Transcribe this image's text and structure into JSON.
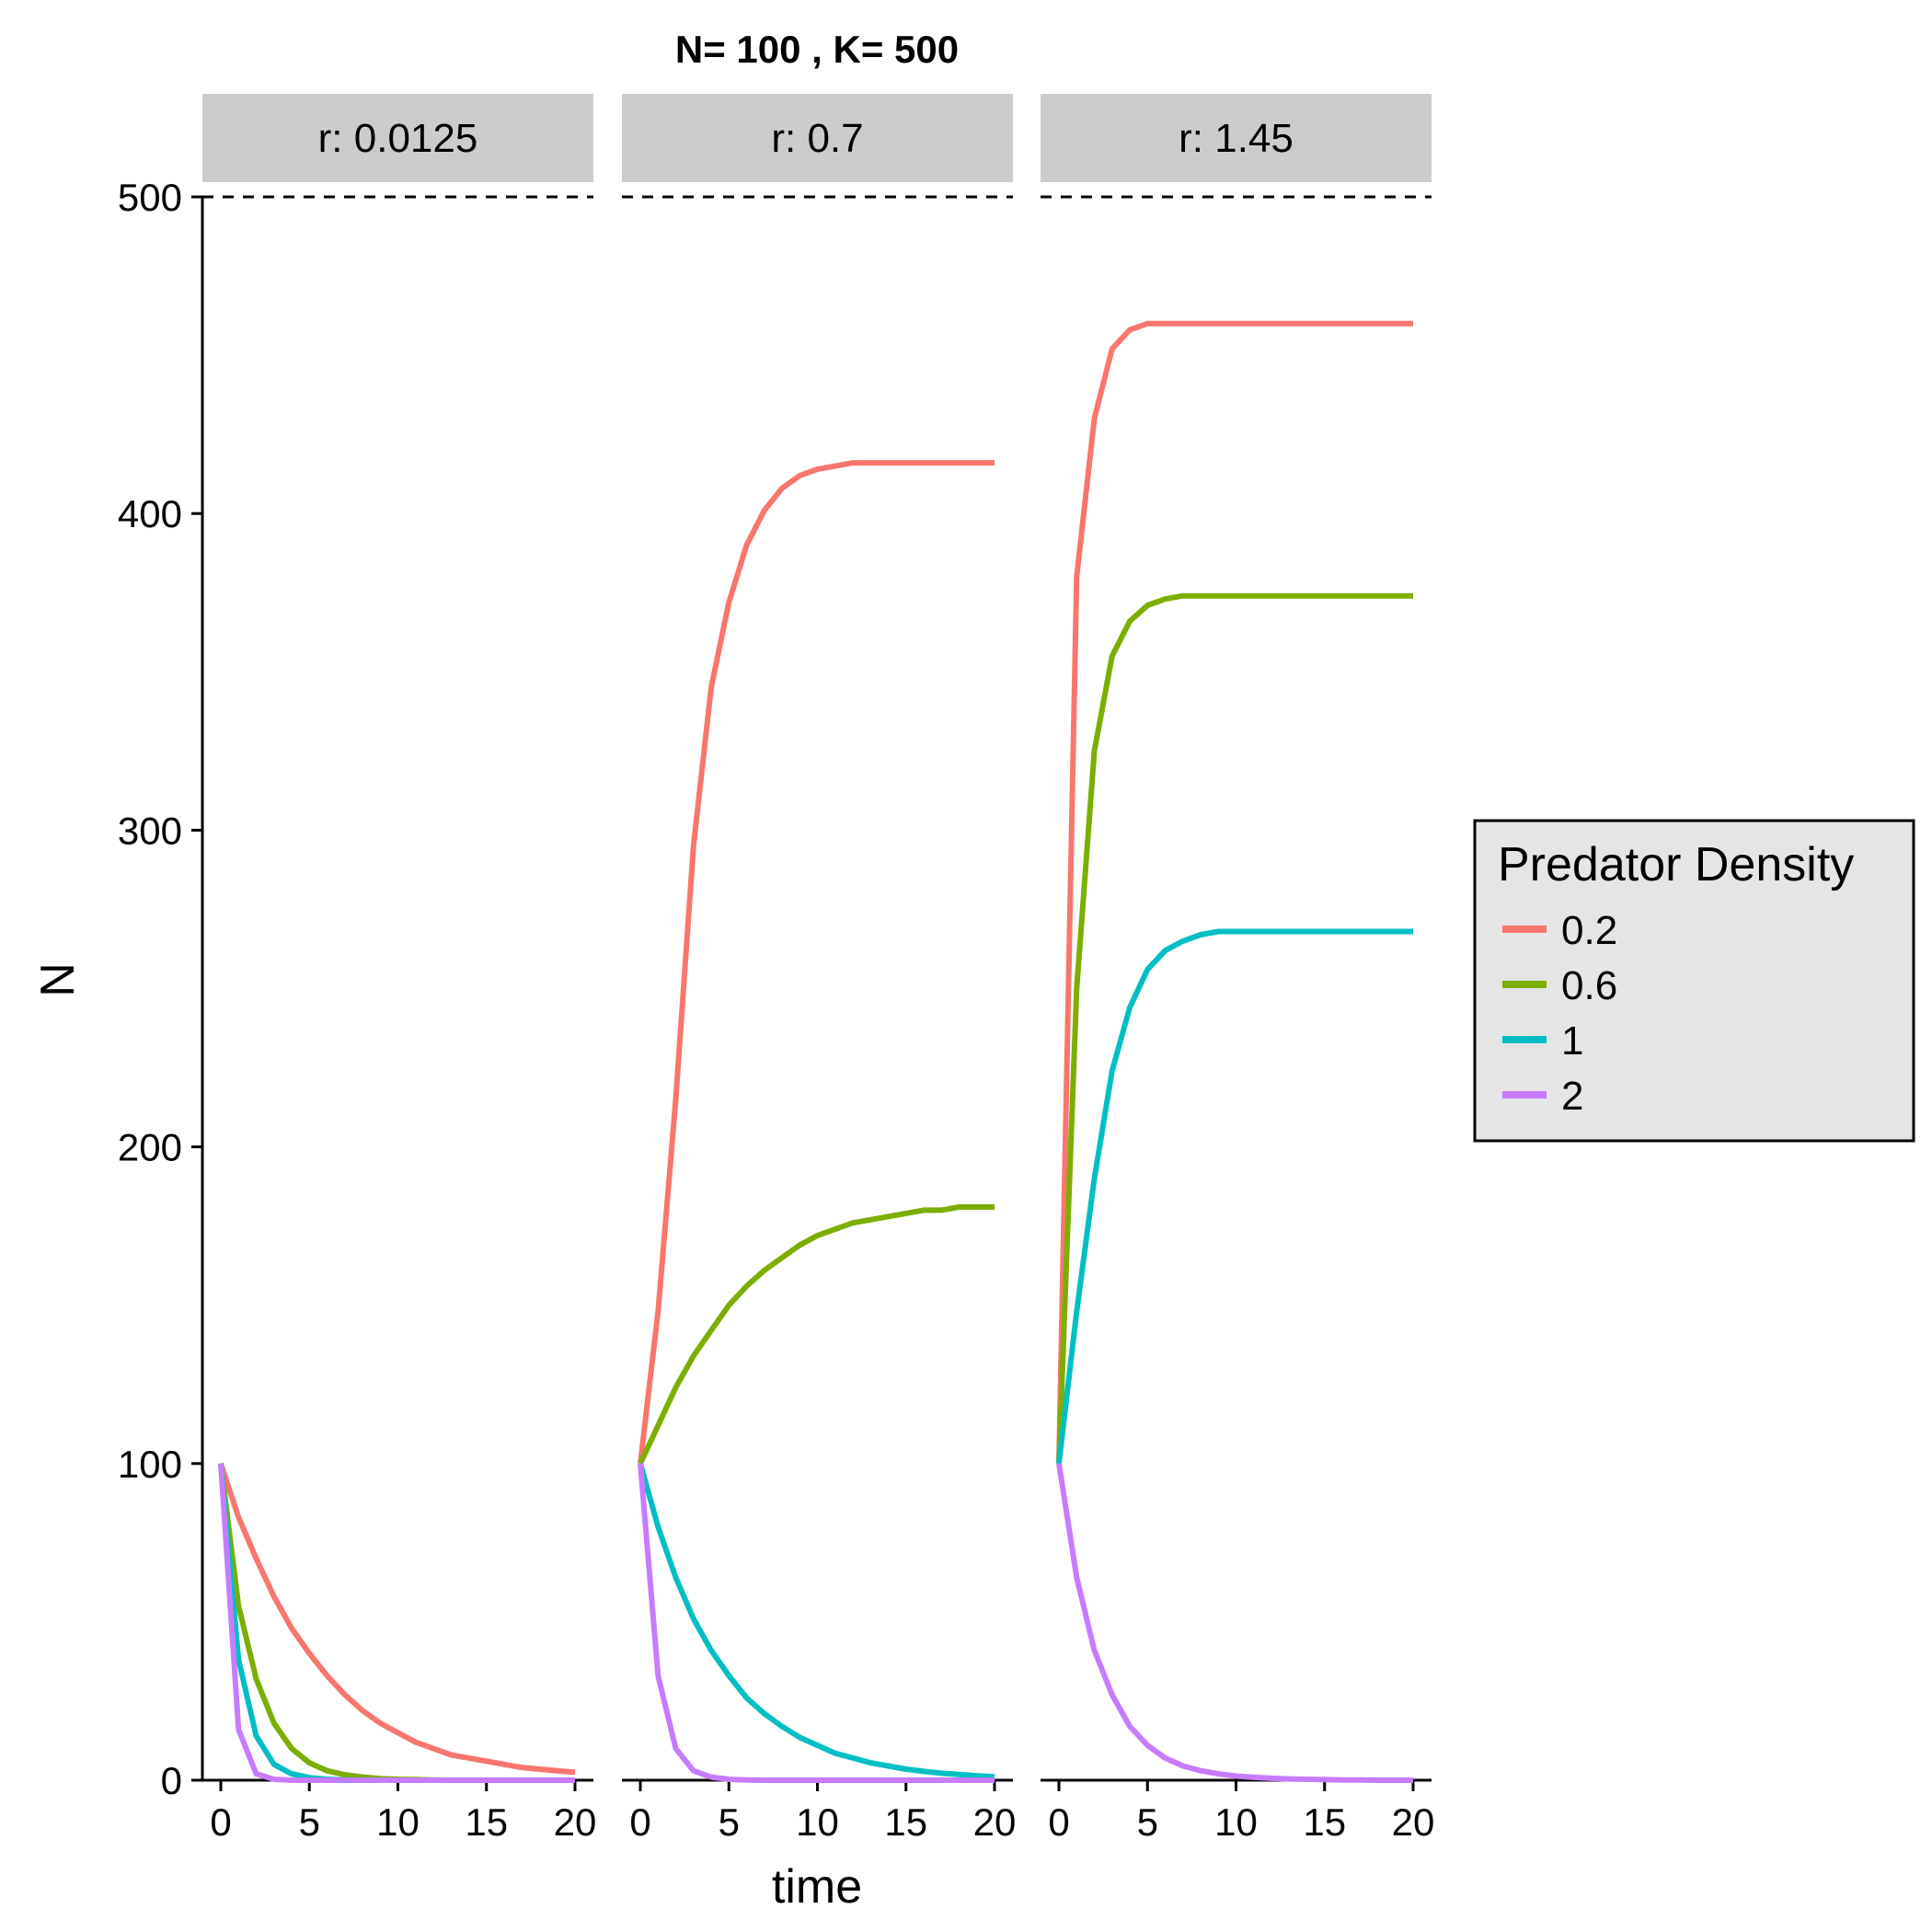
{
  "title": "N= 100 , K= 500",
  "chart_data": {
    "type": "line",
    "title": "N= 100 , K= 500",
    "xlabel": "time",
    "ylabel": "N",
    "xlim": [
      0,
      20
    ],
    "ylim": [
      0,
      500
    ],
    "x_ticks": [
      0,
      5,
      10,
      15,
      20
    ],
    "y_ticks": [
      0,
      100,
      200,
      300,
      400,
      500
    ],
    "grid": false,
    "reference_line": {
      "y": 500,
      "style": "dashed"
    },
    "legend": {
      "title": "Predator Density",
      "position": "right",
      "entries": [
        "0.2",
        "0.6",
        "1",
        "2"
      ]
    },
    "series_colors": {
      "0.2": "#F8766D",
      "0.6": "#7CAE00",
      "1": "#00BFC4",
      "2": "#C77CFF"
    },
    "x": [
      0,
      1,
      2,
      3,
      4,
      5,
      6,
      7,
      8,
      9,
      10,
      11,
      12,
      13,
      14,
      15,
      16,
      17,
      18,
      19,
      20
    ],
    "panels": [
      {
        "label": "r: 0.0125",
        "series": [
          {
            "name": "0.2",
            "values": [
              100,
              83,
              70,
              58,
              48,
              40,
              33,
              27,
              22,
              18,
              15,
              12,
              10,
              8,
              7,
              6,
              5,
              4,
              3.5,
              3,
              2.5
            ]
          },
          {
            "name": "0.6",
            "values": [
              100,
              55,
              32,
              18,
              10,
              5.5,
              3,
              1.7,
              1,
              0.5,
              0.3,
              0.2,
              0.1,
              0,
              0,
              0,
              0,
              0,
              0,
              0,
              0
            ]
          },
          {
            "name": "1",
            "values": [
              100,
              38,
              14,
              5,
              2,
              0.8,
              0.3,
              0.1,
              0,
              0,
              0,
              0,
              0,
              0,
              0,
              0,
              0,
              0,
              0,
              0,
              0
            ]
          },
          {
            "name": "2",
            "values": [
              100,
              16,
              2,
              0.3,
              0,
              0,
              0,
              0,
              0,
              0,
              0,
              0,
              0,
              0,
              0,
              0,
              0,
              0,
              0,
              0,
              0
            ]
          }
        ]
      },
      {
        "label": "r: 0.7",
        "series": [
          {
            "name": "0.2",
            "values": [
              100,
              148,
              215,
              295,
              345,
              372,
              390,
              401,
              408,
              412,
              414,
              415,
              416,
              416,
              416,
              416,
              416,
              416,
              416,
              416,
              416
            ]
          },
          {
            "name": "0.6",
            "values": [
              100,
              112,
              124,
              134,
              142,
              150,
              156,
              161,
              165,
              169,
              172,
              174,
              176,
              177,
              178,
              179,
              180,
              180,
              181,
              181,
              181
            ]
          },
          {
            "name": "1",
            "values": [
              100,
              80,
              64,
              51,
              41,
              33,
              26,
              21,
              17,
              13.5,
              11,
              8.5,
              7,
              5.5,
              4.5,
              3.5,
              2.8,
              2.2,
              1.8,
              1.4,
              1.1
            ]
          },
          {
            "name": "2",
            "values": [
              100,
              33,
              10,
              3,
              1,
              0.3,
              0.1,
              0,
              0,
              0,
              0,
              0,
              0,
              0,
              0,
              0,
              0,
              0,
              0,
              0,
              0
            ]
          }
        ]
      },
      {
        "label": "r: 1.45",
        "series": [
          {
            "name": "0.2",
            "values": [
              100,
              380,
              430,
              452,
              458,
              460,
              460,
              460,
              460,
              460,
              460,
              460,
              460,
              460,
              460,
              460,
              460,
              460,
              460,
              460,
              460
            ]
          },
          {
            "name": "0.6",
            "values": [
              100,
              250,
              325,
              355,
              366,
              371,
              373,
              374,
              374,
              374,
              374,
              374,
              374,
              374,
              374,
              374,
              374,
              374,
              374,
              374,
              374
            ]
          },
          {
            "name": "1",
            "values": [
              100,
              148,
              190,
              224,
              244,
              256,
              262,
              265,
              267,
              268,
              268,
              268,
              268,
              268,
              268,
              268,
              268,
              268,
              268,
              268,
              268
            ]
          },
          {
            "name": "2",
            "values": [
              100,
              64,
              41,
              27,
              17,
              11,
              7,
              4.5,
              3,
              2,
              1.3,
              0.9,
              0.6,
              0.4,
              0.3,
              0.2,
              0.1,
              0.1,
              0,
              0,
              0
            ]
          }
        ]
      }
    ]
  }
}
